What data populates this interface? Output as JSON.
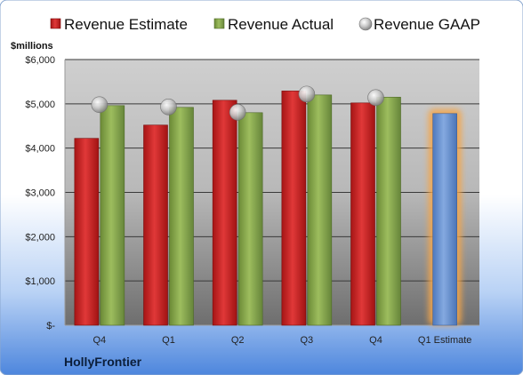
{
  "chart_data": {
    "type": "bar",
    "unit_label": "$millions",
    "company": "HollyFrontier",
    "categories": [
      "Q4",
      "Q1",
      "Q2",
      "Q3",
      "Q4",
      "Q1 Estimate"
    ],
    "ylim": [
      0,
      6000
    ],
    "yticks": [
      0,
      1000,
      2000,
      3000,
      4000,
      5000,
      6000
    ],
    "ytick_labels": [
      "$-",
      "$1,000",
      "$2,000",
      "$3,000",
      "$4,000",
      "$5,000",
      "$6,000"
    ],
    "legend": [
      "Revenue Estimate",
      "Revenue Actual",
      "Revenue GAAP"
    ],
    "legend_position": "top",
    "grid": true,
    "series": [
      {
        "name": "Revenue Estimate",
        "kind": "bar",
        "color": "#d42a2a",
        "values": [
          4220,
          4520,
          5080,
          5290,
          5020,
          null
        ]
      },
      {
        "name": "Revenue Actual",
        "kind": "bar",
        "color": "#8aac4e",
        "values": [
          4960,
          4920,
          4800,
          5200,
          5150,
          null
        ]
      },
      {
        "name": "Revenue GAAP",
        "kind": "marker",
        "color": "#b8b8b8",
        "values": [
          4980,
          4930,
          4810,
          5220,
          5140,
          null
        ]
      },
      {
        "name": "Q1 Estimate",
        "kind": "bar",
        "color": "#6d97d3",
        "highlight": "#f5a64a",
        "values": [
          null,
          null,
          null,
          null,
          null,
          4780
        ]
      }
    ]
  }
}
